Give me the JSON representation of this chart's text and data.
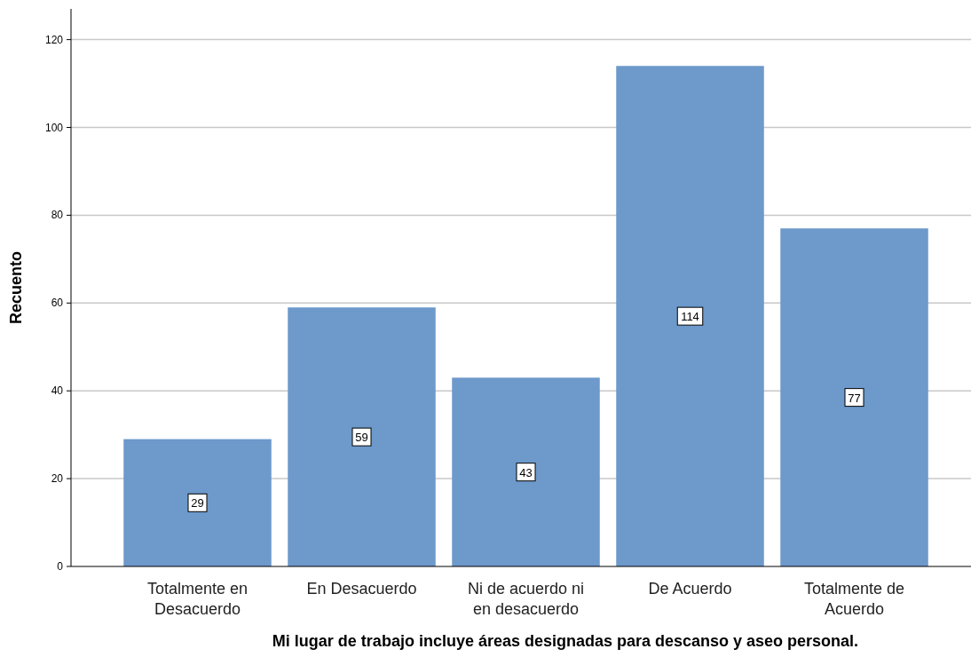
{
  "chart_data": {
    "type": "bar",
    "xlabel": "Mi lugar de trabajo incluye áreas designadas para descanso y aseo personal.",
    "ylabel": "Recuento",
    "categories": [
      "Totalmente en Desacuerdo",
      "En Desacuerdo",
      "Ni de acuerdo ni en desacuerdo",
      "De Acuerdo",
      "Totalmente de Acuerdo"
    ],
    "values": [
      29,
      59,
      43,
      114,
      77
    ],
    "color": "#6d99cb",
    "ylim": [
      0,
      127
    ],
    "yticks": [
      0,
      20,
      40,
      60,
      80,
      100,
      120
    ],
    "grid": "y",
    "data_labels": true
  }
}
